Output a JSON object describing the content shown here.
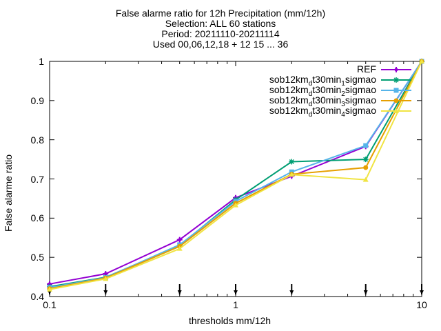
{
  "chart_data": {
    "type": "line",
    "title_lines": [
      "False alarme ratio  for 12h Precipitation (mm/12h)",
      "Selection: ALL     60 stations",
      "Period: 20211110-20211114",
      "Used 00,06,12,18 + 12 15 ... 36"
    ],
    "xlabel": "thresholds mm/12h",
    "ylabel": "False alarme ratio",
    "x_scale": "log",
    "xlim": [
      0.1,
      10
    ],
    "ylim": [
      0.4,
      1.0
    ],
    "x_ticks": [
      0.1,
      1,
      10
    ],
    "x_tick_labels": [
      "0.1",
      "1",
      "10"
    ],
    "y_ticks": [
      0.4,
      0.5,
      0.6,
      0.7,
      0.8,
      0.9,
      1.0
    ],
    "y_tick_labels": [
      "0.4",
      "0.5",
      "0.6",
      "0.7",
      "0.8",
      "0.9",
      "1"
    ],
    "grid": false,
    "legend_position": "top-right",
    "threshold_markers": [
      0.1,
      0.2,
      0.5,
      1,
      2,
      5,
      10
    ],
    "x": [
      0.1,
      0.2,
      0.5,
      1,
      2,
      5,
      10
    ],
    "series": [
      {
        "name": "REF",
        "label_html": "REF",
        "color": "#9400d3",
        "marker": "cross",
        "values": [
          0.432,
          0.458,
          0.545,
          0.652,
          0.707,
          0.783,
          1.0
        ]
      },
      {
        "name": "sob12km_d t30min_1 sigmao",
        "label_html": "sob12km<sub>d</sub>t30min<sub>1</sub>sigmao",
        "color": "#009e73",
        "marker": "asterisk",
        "values": [
          0.425,
          0.449,
          0.53,
          0.647,
          0.744,
          0.75,
          1.0
        ]
      },
      {
        "name": "sob12km_d t30min_2 sigmao",
        "label_html": "sob12km<sub>d</sub>t30min<sub>2</sub>sigmao",
        "color": "#56b4e9",
        "marker": "square",
        "values": [
          0.423,
          0.448,
          0.532,
          0.643,
          0.718,
          0.785,
          1.0
        ]
      },
      {
        "name": "sob12km_d t30min_3 sigmao",
        "label_html": "sob12km<sub>d</sub>t30min<sub>3</sub>sigmao",
        "color": "#e69f00",
        "marker": "circle",
        "values": [
          0.42,
          0.447,
          0.528,
          0.638,
          0.712,
          0.729,
          1.0
        ]
      },
      {
        "name": "sob12km_d t30min_4 sigmao",
        "label_html": "sob12km<sub>d</sub>t30min<sub>4</sub>sigmao",
        "color": "#f0e442",
        "marker": "triangle",
        "values": [
          0.418,
          0.445,
          0.522,
          0.633,
          0.711,
          0.698,
          1.0
        ]
      }
    ]
  }
}
